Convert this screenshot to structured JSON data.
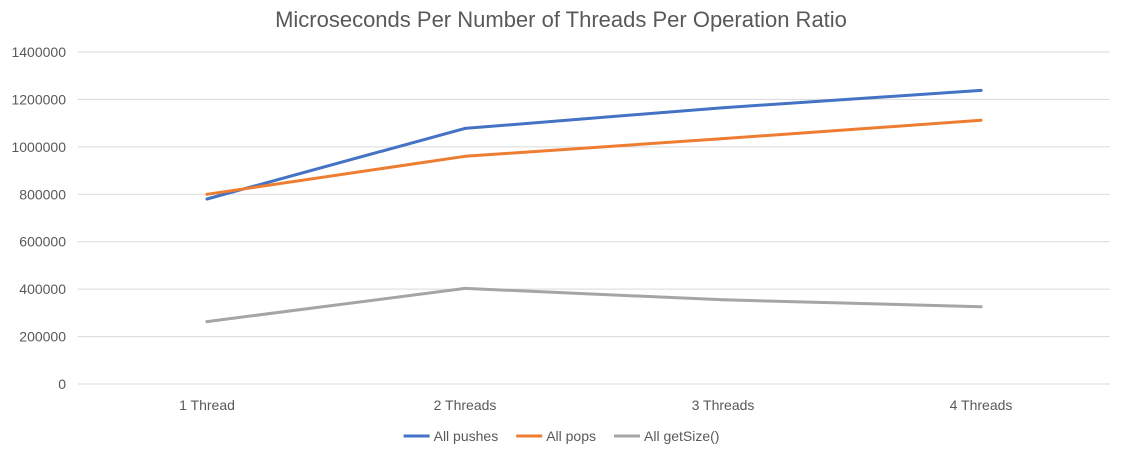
{
  "chart_data": {
    "type": "line",
    "title": "Microseconds Per Number of Threads Per Operation Ratio",
    "xlabel": "",
    "ylabel": "",
    "categories": [
      "1 Thread",
      "2 Threads",
      "3 Threads",
      "4 Threads"
    ],
    "ylim": [
      0,
      1400000
    ],
    "yticks": [
      0,
      200000,
      400000,
      600000,
      800000,
      1000000,
      1200000,
      1400000
    ],
    "ytick_labels": [
      "0",
      "200000",
      "400000",
      "600000",
      "800000",
      "1000000",
      "1200000",
      "1400000"
    ],
    "grid": true,
    "legend_position": "bottom",
    "series": [
      {
        "name": "All pushes",
        "color": "#4472c4",
        "values": [
          780000,
          1078000,
          1165000,
          1238000
        ]
      },
      {
        "name": "All pops",
        "color": "#ed7d31",
        "values": [
          800000,
          960000,
          1035000,
          1112000
        ]
      },
      {
        "name": "All getSize()",
        "color": "#a5a5a5",
        "values": [
          263000,
          403000,
          355000,
          326000
        ]
      }
    ]
  }
}
